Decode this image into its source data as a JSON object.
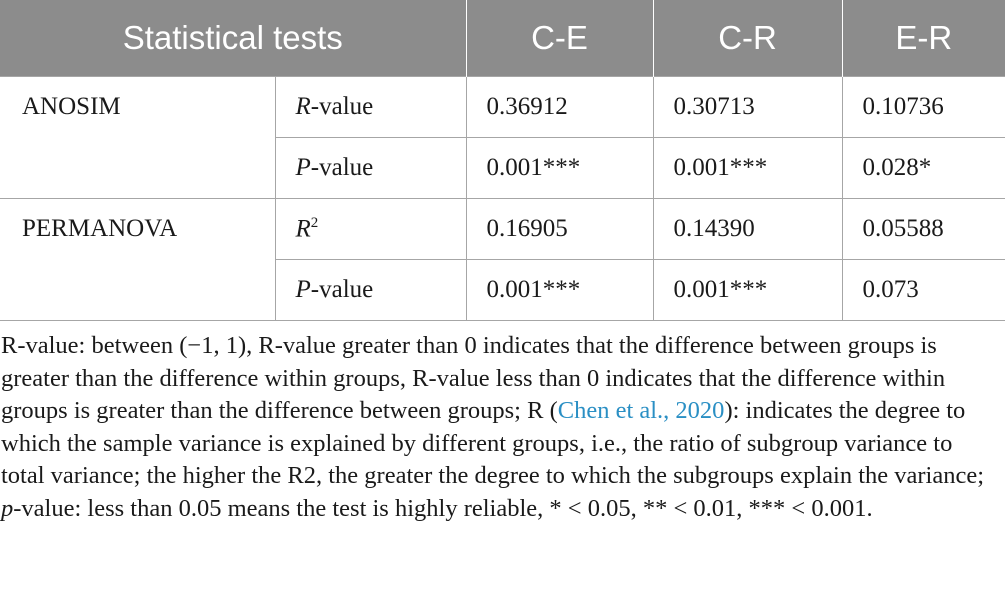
{
  "table": {
    "headers": [
      "Statistical tests",
      "C-E",
      "C-R",
      "E-R"
    ],
    "groups": [
      {
        "name": "ANOSIM",
        "rows": [
          {
            "metric_italic": "R",
            "metric_suffix": "-value",
            "values": [
              "0.36912",
              "0.30713",
              "0.10736"
            ]
          },
          {
            "metric_italic": "P",
            "metric_suffix": "-value",
            "values": [
              "0.001***",
              "0.001***",
              "0.028*"
            ]
          }
        ]
      },
      {
        "name": "PERMANOVA",
        "rows": [
          {
            "metric_italic": "R",
            "metric_sup": "2",
            "values": [
              "0.16905",
              "0.14390",
              "0.05588"
            ]
          },
          {
            "metric_italic": "P",
            "metric_suffix": "-value",
            "values": [
              "0.001***",
              "0.001***",
              "0.073"
            ]
          }
        ]
      }
    ]
  },
  "footnote": {
    "part1": "R-value: between (−1, 1), R-value greater than 0 indicates that the difference between groups is greater than the difference within groups, R-value less than 0 indicates that the difference within groups is greater than the difference between groups; R (",
    "citation": "Chen et al., 2020",
    "part2": "): indicates the degree to which the sample variance is explained by different groups, i.e., the ratio of subgroup variance to total variance; the higher the R2, the greater the degree to which the subgroups explain the variance; ",
    "p_italic": "p",
    "part3": "-value: less than 0.05 means the test is highly reliable, * < 0.05, ** < 0.01, *** < 0.001."
  }
}
